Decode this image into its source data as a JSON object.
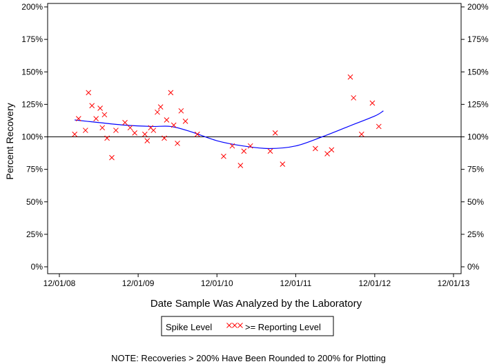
{
  "chart_data": {
    "type": "scatter",
    "title": "",
    "xlabel": "Date Sample Was Analyzed by the Laboratory",
    "ylabel": "Percent Recovery",
    "xlim": [
      "2008-12-01",
      "2013-12-01"
    ],
    "ylim": [
      0,
      200
    ],
    "x_ticks": [
      "12/01/08",
      "12/01/09",
      "12/01/10",
      "12/01/11",
      "12/01/12",
      "12/01/13"
    ],
    "y_ticks": [
      "0%",
      "25%",
      "50%",
      "75%",
      "100%",
      "125%",
      "150%",
      "175%",
      "200%"
    ],
    "y_tick_values": [
      0,
      25,
      50,
      75,
      100,
      125,
      150,
      175,
      200
    ],
    "right_axis_mirror": true,
    "grid": false,
    "reference_line": 100,
    "legend": {
      "title": "Spike Level",
      "marker_label": ">= Reporting Level",
      "placement": "bottom-center"
    },
    "note": "NOTE: Recoveries > 200% Have Been Rounded to 200% for Plotting",
    "colors": {
      "points": "#ff0000",
      "trend": "#0000ff",
      "axes": "#000000"
    },
    "series": [
      {
        "name": ">= Reporting Level",
        "marker": "x",
        "points": [
          [
            "2009-02-10",
            102
          ],
          [
            "2009-02-28",
            114
          ],
          [
            "2009-04-01",
            105
          ],
          [
            "2009-04-15",
            134
          ],
          [
            "2009-05-01",
            124
          ],
          [
            "2009-05-20",
            114
          ],
          [
            "2009-06-08",
            122
          ],
          [
            "2009-06-18",
            107
          ],
          [
            "2009-06-28",
            117
          ],
          [
            "2009-07-10",
            99
          ],
          [
            "2009-08-01",
            84
          ],
          [
            "2009-08-20",
            105
          ],
          [
            "2009-10-01",
            111
          ],
          [
            "2009-10-25",
            107
          ],
          [
            "2009-11-15",
            103
          ],
          [
            "2010-01-01",
            102
          ],
          [
            "2010-01-12",
            97
          ],
          [
            "2010-01-28",
            107
          ],
          [
            "2010-02-10",
            105
          ],
          [
            "2010-02-28",
            119
          ],
          [
            "2010-03-15",
            123
          ],
          [
            "2010-04-01",
            99
          ],
          [
            "2010-04-12",
            113
          ],
          [
            "2010-05-01",
            134
          ],
          [
            "2010-05-15",
            109
          ],
          [
            "2010-06-01",
            95
          ],
          [
            "2010-06-18",
            120
          ],
          [
            "2010-07-08",
            112
          ],
          [
            "2010-09-01",
            102
          ],
          [
            "2011-01-01",
            85
          ],
          [
            "2011-02-10",
            93
          ],
          [
            "2011-03-20",
            78
          ],
          [
            "2011-04-05",
            89
          ],
          [
            "2011-05-05",
            93
          ],
          [
            "2011-08-05",
            89
          ],
          [
            "2011-08-28",
            103
          ],
          [
            "2011-10-01",
            79
          ],
          [
            "2012-03-01",
            91
          ],
          [
            "2012-04-25",
            87
          ],
          [
            "2012-05-15",
            90
          ],
          [
            "2012-08-10",
            146
          ],
          [
            "2012-08-25",
            130
          ],
          [
            "2012-10-01",
            102
          ],
          [
            "2012-11-20",
            126
          ],
          [
            "2012-12-20",
            108
          ]
        ]
      },
      {
        "name": "",
        "type": "line",
        "smooth": true,
        "points": [
          [
            "2009-02-10",
            113
          ],
          [
            "2009-06-01",
            111
          ],
          [
            "2009-10-01",
            109
          ],
          [
            "2010-02-01",
            108
          ],
          [
            "2010-05-01",
            108
          ],
          [
            "2010-08-01",
            104
          ],
          [
            "2010-12-01",
            97
          ],
          [
            "2011-04-01",
            93
          ],
          [
            "2011-08-01",
            91
          ],
          [
            "2011-12-01",
            93
          ],
          [
            "2012-04-01",
            100
          ],
          [
            "2012-08-01",
            108
          ],
          [
            "2012-12-01",
            116
          ],
          [
            "2013-01-10",
            120
          ]
        ]
      }
    ]
  }
}
